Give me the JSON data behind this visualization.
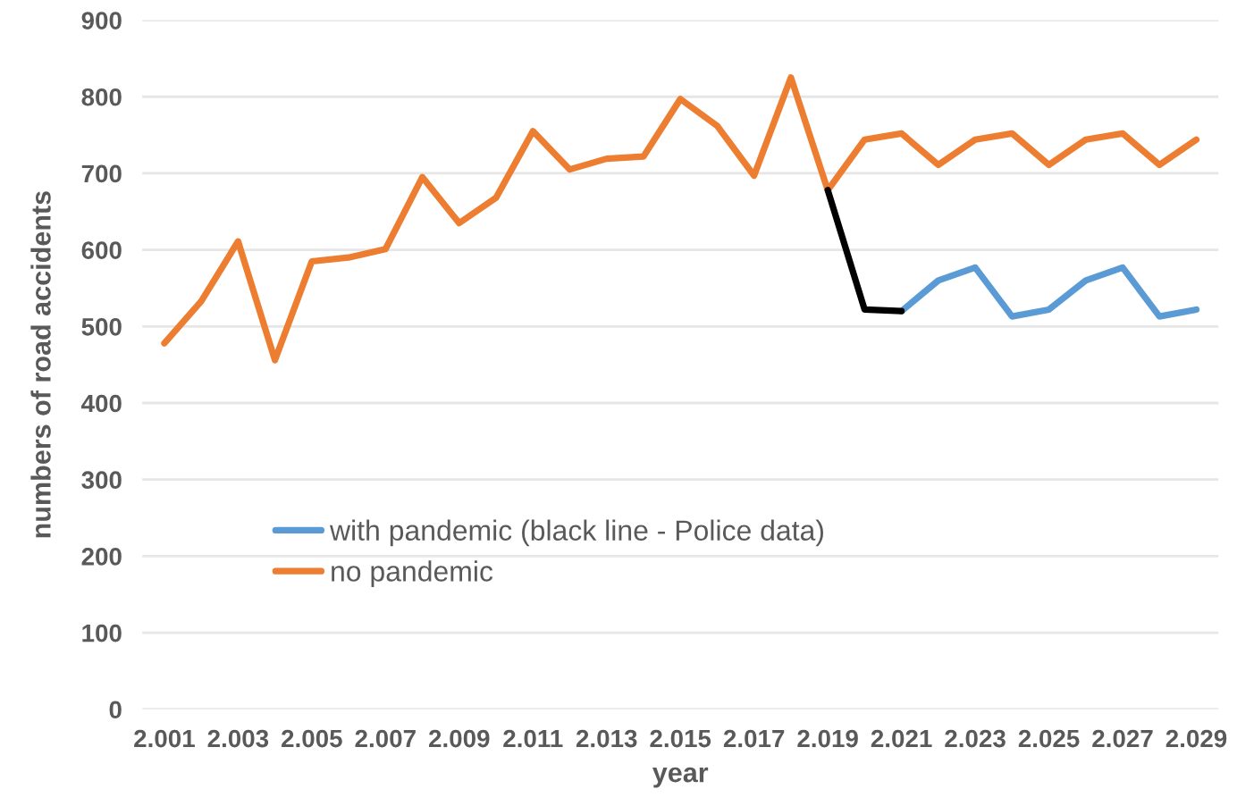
{
  "chart_data": {
    "type": "line",
    "xlabel": "year",
    "ylabel": "numbers of road accidents",
    "categories": [
      "2.001",
      null,
      "2.003",
      null,
      "2.005",
      null,
      "2.007",
      null,
      "2.009",
      null,
      "2.011",
      null,
      "2.013",
      null,
      "2.015",
      null,
      "2.017",
      null,
      "2.019",
      null,
      "2.021",
      null,
      "2.023",
      null,
      "2.025",
      null,
      "2.027",
      null,
      "2.029"
    ],
    "series": [
      {
        "name": "with pandemic (black line - Police data)",
        "color": "#5b9bd5",
        "values": [
          null,
          null,
          null,
          null,
          null,
          null,
          null,
          null,
          null,
          null,
          null,
          null,
          null,
          null,
          null,
          null,
          null,
          null,
          null,
          null,
          520,
          560,
          577,
          513,
          522,
          560,
          577,
          513,
          522
        ]
      },
      {
        "name": "no pandemic",
        "color": "#ed7d31",
        "values": [
          478,
          533,
          611,
          456,
          585,
          590,
          601,
          695,
          635,
          668,
          755,
          705,
          719,
          722,
          797,
          762,
          697,
          825,
          678,
          744,
          752,
          711,
          744,
          752,
          711,
          744,
          752,
          711,
          744
        ]
      },
      {
        "color": "#000000",
        "values": [
          null,
          null,
          null,
          null,
          null,
          null,
          null,
          null,
          null,
          null,
          null,
          null,
          null,
          null,
          null,
          null,
          null,
          null,
          678,
          522,
          520,
          null,
          null,
          null,
          null,
          null,
          null,
          null,
          null
        ]
      }
    ],
    "ylim": [
      0,
      900
    ],
    "yticks": [
      0,
      100,
      200,
      300,
      400,
      500,
      600,
      700,
      800,
      900
    ],
    "grid": "y",
    "legend": "bottom left",
    "marker": "none",
    "line_style": "solid"
  }
}
